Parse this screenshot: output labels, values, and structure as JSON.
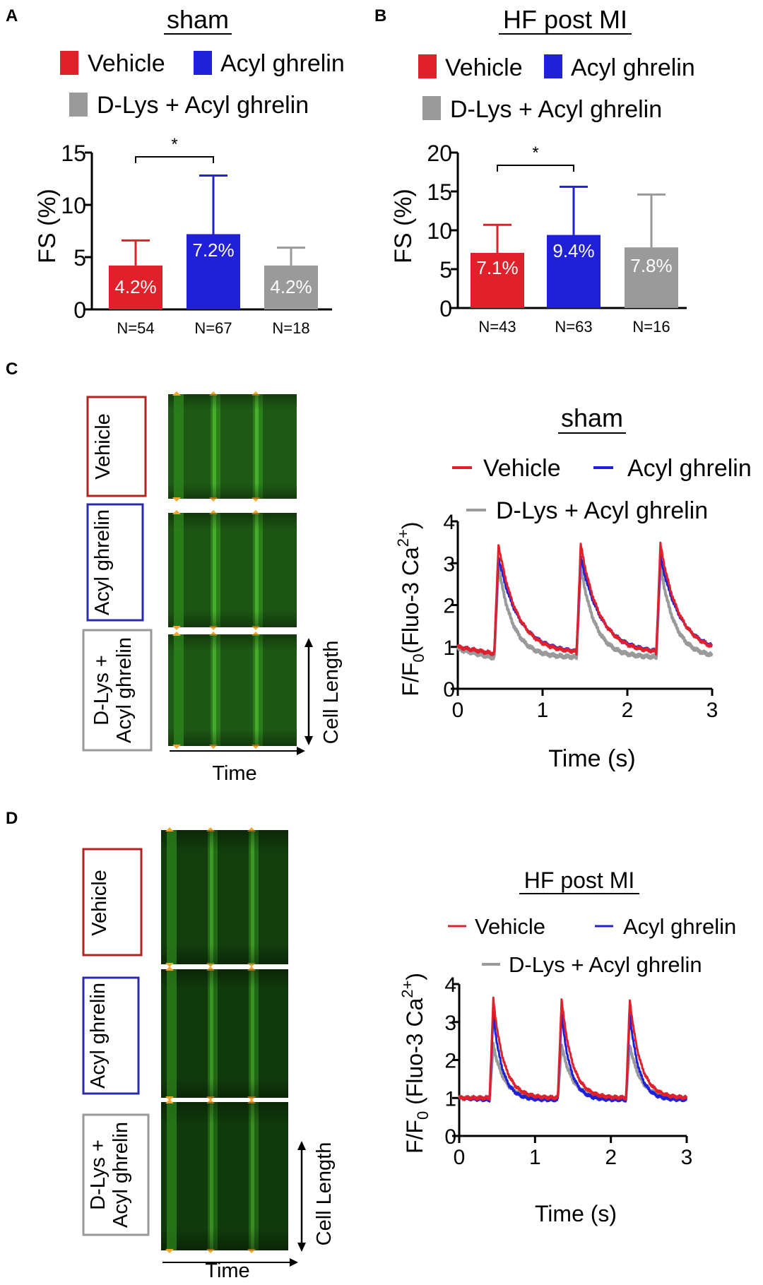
{
  "colors": {
    "vehicle": "#e0202a",
    "acyl": "#2020d8",
    "dlys": "#9a9a9a",
    "arrow": "#f0a830",
    "green_dark": "#0b2a08",
    "green_band": "#2f8a1c"
  },
  "chart_data": [
    {
      "id": "A",
      "type": "bar",
      "panel_label": "A",
      "title": "sham",
      "legend": [
        "Vehicle",
        "Acyl ghrelin",
        "D-Lys + Acyl ghrelin"
      ],
      "ylabel": "FS (%)",
      "ylim": [
        0,
        15
      ],
      "yticks": [
        "0",
        "5",
        "10",
        "15"
      ],
      "categories": [
        "N=54",
        "N=67",
        "N=18"
      ],
      "values": [
        4.2,
        7.2,
        4.2
      ],
      "errors": [
        6.6,
        12.8,
        5.9
      ],
      "value_labels": [
        "4.2%",
        "7.2%",
        "4.2%"
      ],
      "significance": "*"
    },
    {
      "id": "B",
      "type": "bar",
      "panel_label": "B",
      "title": "HF post MI",
      "legend": [
        "Vehicle",
        "Acyl ghrelin",
        "D-Lys + Acyl ghrelin"
      ],
      "ylabel": "FS (%)",
      "ylim": [
        0,
        20
      ],
      "yticks": [
        "0",
        "5",
        "10",
        "15",
        "20"
      ],
      "categories": [
        "N=43",
        "N=63",
        "N=16"
      ],
      "values": [
        7.1,
        9.4,
        7.8
      ],
      "errors": [
        10.7,
        15.6,
        14.6
      ],
      "value_labels": [
        "7.1%",
        "9.4%",
        "7.8%"
      ],
      "significance": "*"
    },
    {
      "id": "C",
      "type": "line",
      "panel_label": "C",
      "title": "sham",
      "legend": [
        "Vehicle",
        "Acyl ghrelin",
        "D-Lys + Acyl ghrelin"
      ],
      "ylabel_main": "F/F",
      "ylabel_sub": "0",
      "ylabel_rest": "(Fluo-3 Ca",
      "ylabel_sup": "2+",
      "ylabel_close": ")",
      "xlabel": "Time (s)",
      "xlim": [
        0,
        3
      ],
      "ylim": [
        0,
        4
      ],
      "xticks": [
        "0",
        "1",
        "2",
        "3"
      ],
      "yticks": [
        "0",
        "1",
        "2",
        "3",
        "4"
      ],
      "onsets": [
        0.43,
        1.4,
        2.34
      ],
      "series": [
        {
          "name": "Vehicle",
          "baseline": 0.85,
          "peak": 3.45,
          "start": 1.0,
          "tau": 0.22
        },
        {
          "name": "Acyl ghrelin",
          "baseline": 0.85,
          "peak": 3.15,
          "start": 1.0,
          "tau": 0.24
        },
        {
          "name": "D-Lys + Acyl ghrelin",
          "baseline": 0.75,
          "peak": 2.95,
          "start": 0.95,
          "tau": 0.17
        }
      ],
      "linescan_labels": [
        "Vehicle",
        "Acyl ghrelin",
        "D-Lys +",
        "Acyl ghrelin"
      ],
      "time_label": "Time",
      "length_label": "Cell Length"
    },
    {
      "id": "D",
      "type": "line",
      "panel_label": "D",
      "title": "HF post MI",
      "legend": [
        "Vehicle",
        "Acyl ghrelin",
        "D-Lys + Acyl ghrelin"
      ],
      "ylabel_main": "F/F",
      "ylabel_sub": "0",
      "ylabel_rest": " (Fluo-3 Ca",
      "ylabel_sup": "2+",
      "ylabel_close": ")",
      "xlabel": "Time (s)",
      "xlim": [
        0,
        3
      ],
      "ylim": [
        0,
        4
      ],
      "xticks": [
        "0",
        "1",
        "2",
        "3"
      ],
      "yticks": [
        "0",
        "1",
        "2",
        "3",
        "4"
      ],
      "onsets": [
        0.4,
        1.3,
        2.2
      ],
      "series": [
        {
          "name": "Vehicle",
          "baseline": 1.0,
          "peak": 3.6,
          "start": 1.0,
          "tau": 0.14
        },
        {
          "name": "Acyl ghrelin",
          "baseline": 0.95,
          "peak": 3.2,
          "start": 1.0,
          "tau": 0.12
        },
        {
          "name": "D-Lys + Acyl ghrelin",
          "baseline": 1.0,
          "peak": 2.4,
          "start": 1.0,
          "tau": 0.14
        }
      ],
      "linescan_labels": [
        "Vehicle",
        "Acyl ghrelin",
        "D-Lys +",
        "Acyl ghrelin"
      ],
      "time_label": "Time",
      "length_label": "Cell Length"
    }
  ]
}
